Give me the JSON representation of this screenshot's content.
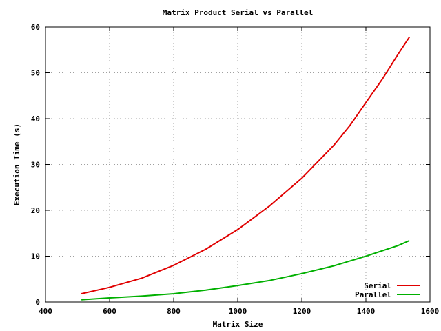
{
  "chart_data": {
    "type": "line",
    "title": "Matrix Product Serial vs Parallel",
    "xlabel": "Matrix Size",
    "ylabel": "Execution Time (s)",
    "xlim": [
      400,
      1600
    ],
    "ylim": [
      0,
      60
    ],
    "xticks": [
      400,
      600,
      800,
      1000,
      1200,
      1400,
      1600
    ],
    "yticks": [
      0,
      10,
      20,
      30,
      40,
      50,
      60
    ],
    "grid": true,
    "legend_position": "bottom-right",
    "series": [
      {
        "name": "Serial",
        "color": "#e00000",
        "x": [
          512,
          600,
          700,
          800,
          900,
          1000,
          1100,
          1200,
          1300,
          1350,
          1400,
          1450,
          1500,
          1536
        ],
        "y": [
          1.8,
          3.2,
          5.2,
          8.0,
          11.5,
          15.8,
          21.0,
          27.0,
          34.2,
          38.5,
          43.5,
          48.5,
          54.0,
          57.8
        ]
      },
      {
        "name": "Parallel",
        "color": "#00b000",
        "x": [
          512,
          600,
          700,
          800,
          900,
          1000,
          1100,
          1200,
          1300,
          1400,
          1500,
          1536
        ],
        "y": [
          0.5,
          0.9,
          1.3,
          1.8,
          2.6,
          3.6,
          4.7,
          6.2,
          7.9,
          10.0,
          12.3,
          13.4
        ]
      }
    ]
  }
}
